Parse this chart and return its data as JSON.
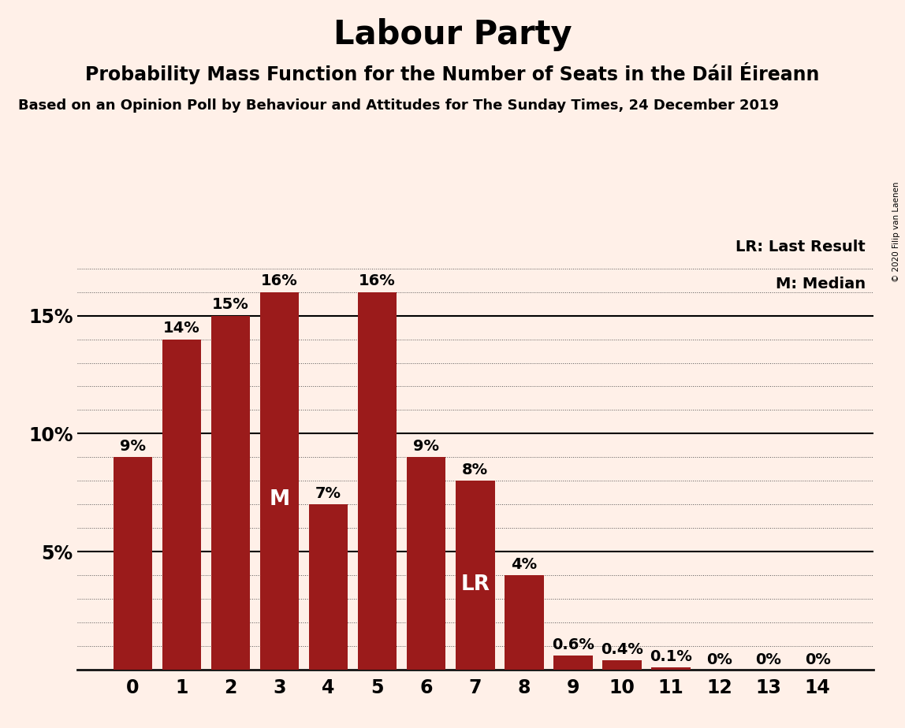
{
  "title": "Labour Party",
  "subtitle1": "Probability Mass Function for the Number of Seats in the Dáil Éireann",
  "subtitle2": "Based on an Opinion Poll by Behaviour and Attitudes for The Sunday Times, 24 December 2019",
  "copyright": "© 2020 Filip van Laenen",
  "categories": [
    0,
    1,
    2,
    3,
    4,
    5,
    6,
    7,
    8,
    9,
    10,
    11,
    12,
    13,
    14
  ],
  "values": [
    9,
    14,
    15,
    16,
    7,
    16,
    9,
    8,
    4,
    0.6,
    0.4,
    0.1,
    0,
    0,
    0
  ],
  "value_labels": [
    "9%",
    "14%",
    "15%",
    "16%",
    "7%",
    "16%",
    "9%",
    "8%",
    "4%",
    "0.6%",
    "0.4%",
    "0.1%",
    "0%",
    "0%",
    "0%"
  ],
  "bar_color": "#9B1B1B",
  "background_color": "#FFF0E8",
  "ylim": [
    0,
    18.5
  ],
  "yticks": [
    5,
    10,
    15
  ],
  "ytick_labels": [
    "5%",
    "10%",
    "15%"
  ],
  "legend_lr_text": "LR: Last Result",
  "legend_m_text": "M: Median",
  "median_bar": 3,
  "lr_bar": 7,
  "grid_color": "#555555",
  "axis_color": "#111111",
  "title_fontsize": 30,
  "subtitle1_fontsize": 17,
  "subtitle2_fontsize": 13,
  "bar_label_fontsize": 14,
  "tick_fontsize": 17,
  "legend_fontsize": 14
}
